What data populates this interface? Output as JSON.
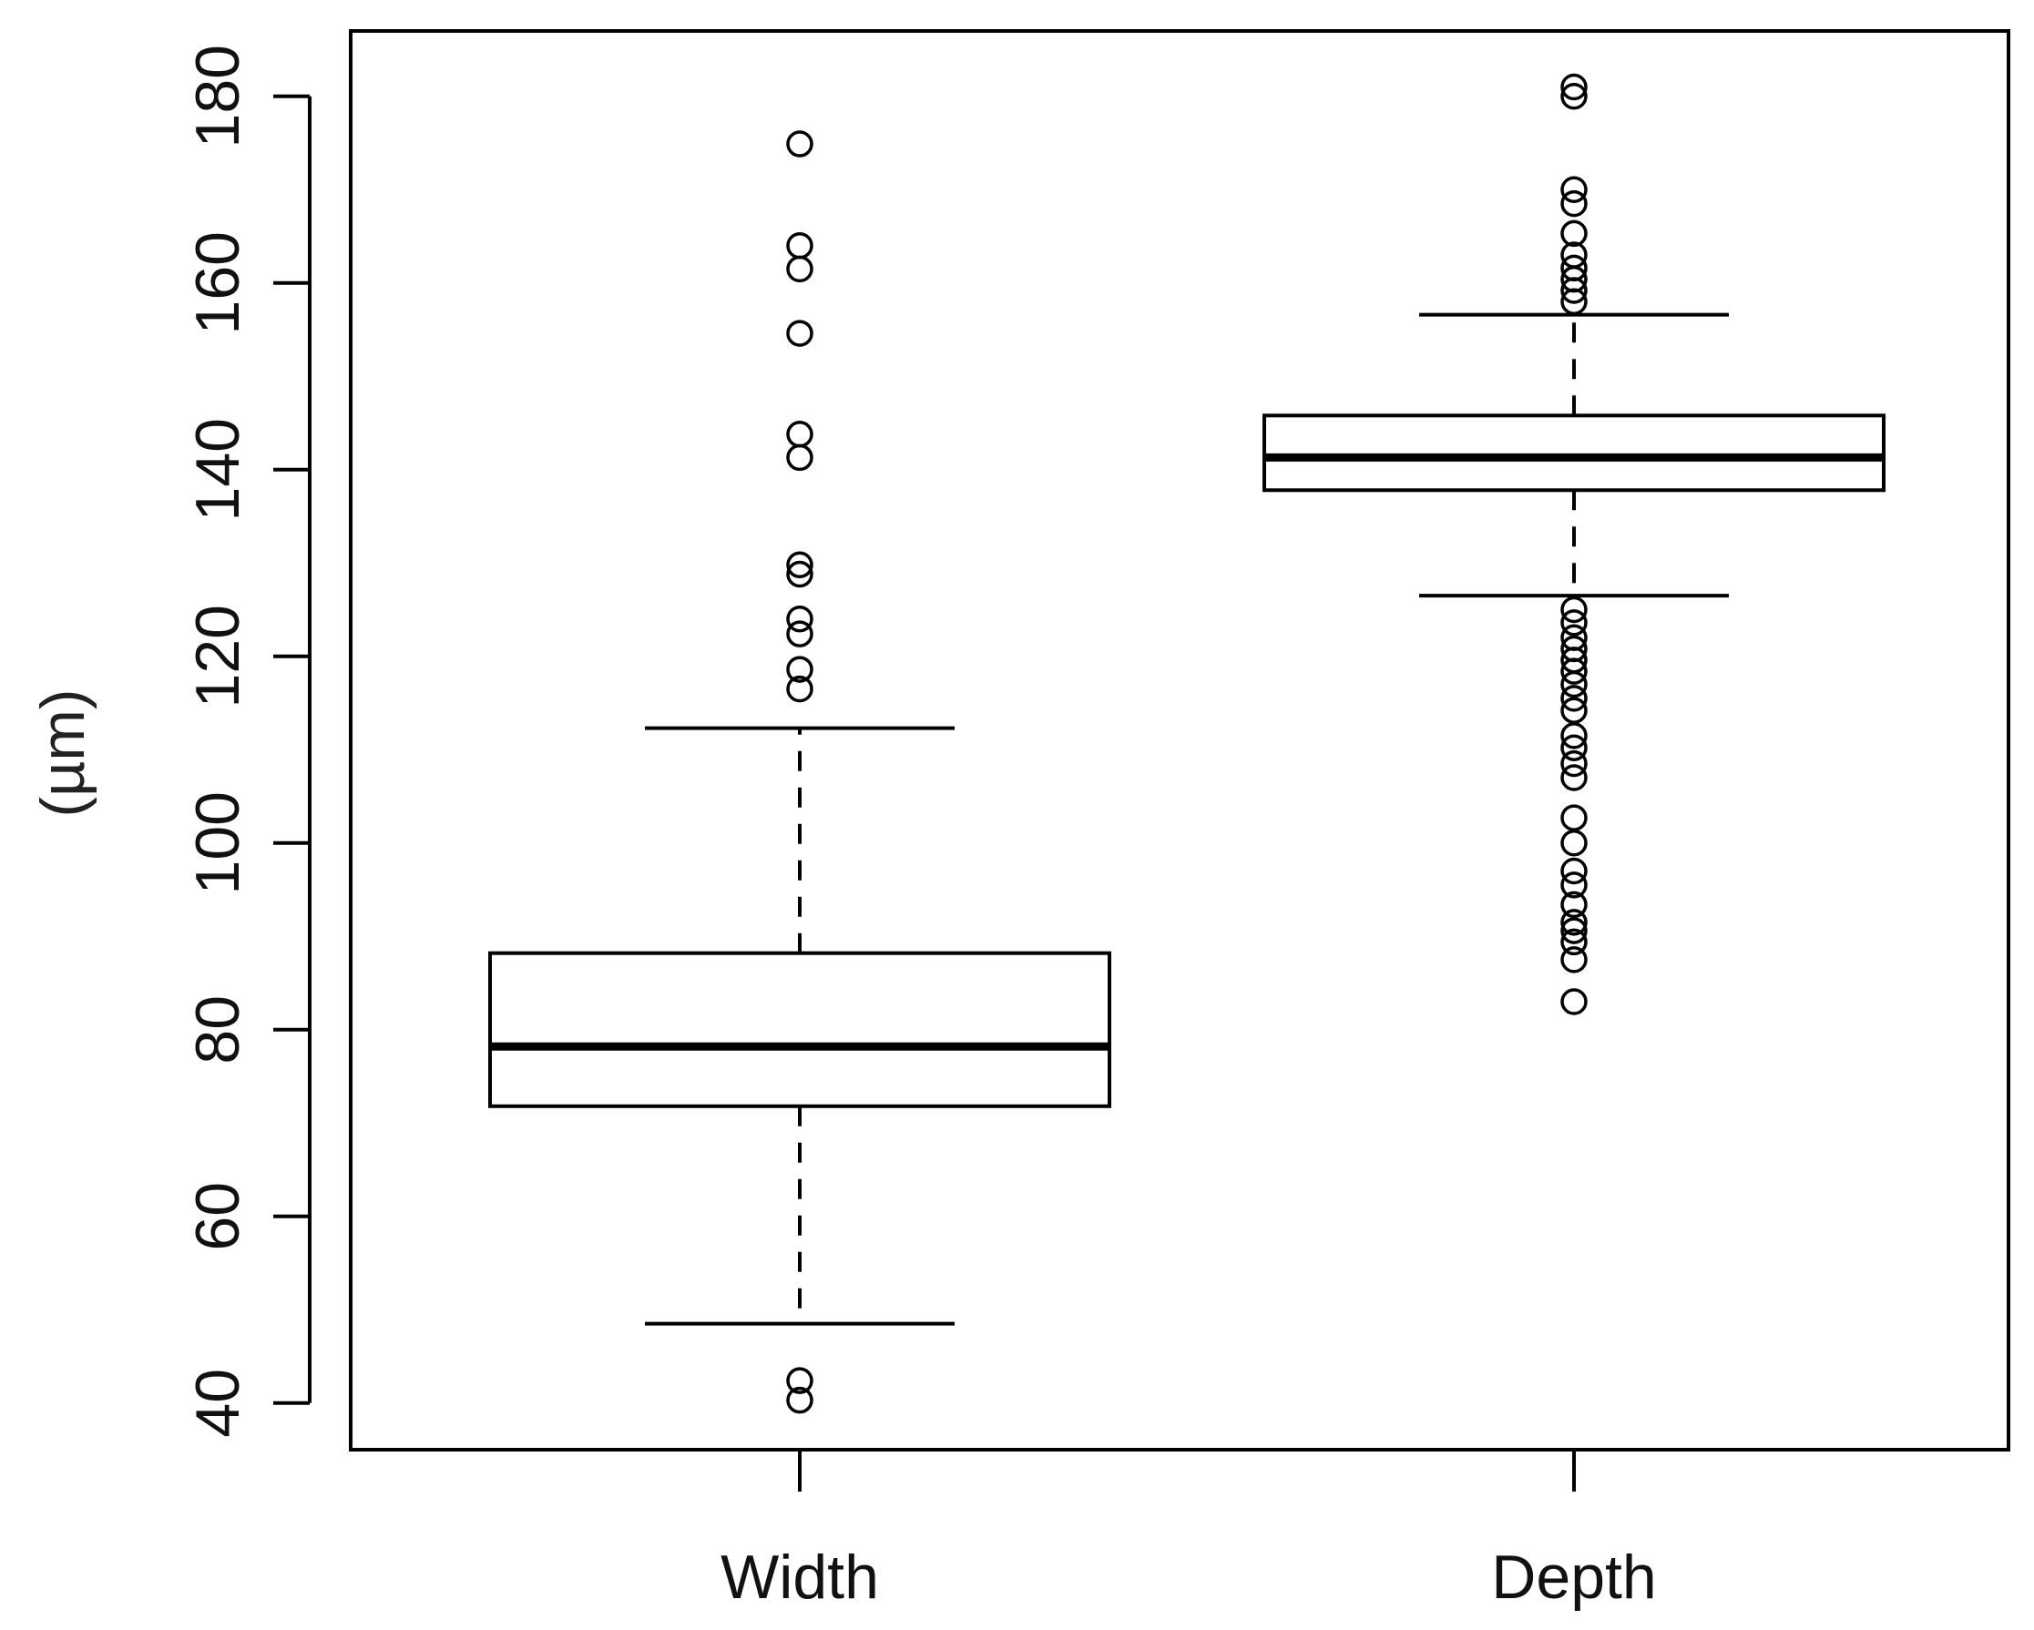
{
  "chart_data": {
    "type": "box",
    "title": "",
    "xlabel": "",
    "ylabel": "(µm)",
    "ylim": [
      35,
      187
    ],
    "yticks": [
      40,
      60,
      80,
      100,
      120,
      140,
      160,
      180
    ],
    "grid": false,
    "legend": "none",
    "colors": {
      "stroke": "#000000",
      "background": "#ffffff"
    },
    "categories": [
      "Width",
      "Depth"
    ],
    "boxes": [
      {
        "name": "Width",
        "whisker_low": 48.5,
        "q1": 71.8,
        "median": 78.2,
        "q3": 88.2,
        "whisker_high": 112.3,
        "outliers": [
          40.3,
          42.4,
          116.5,
          118.6,
          122.4,
          124.0,
          128.8,
          129.8,
          141.3,
          143.8,
          154.6,
          161.5,
          164.0,
          174.9
        ]
      },
      {
        "name": "Depth",
        "whisker_low": 126.5,
        "q1": 137.8,
        "median": 141.3,
        "q3": 145.8,
        "whisker_high": 156.6,
        "outliers": [
          83.0,
          87.5,
          89.4,
          90.6,
          91.5,
          93.4,
          95.5,
          97.0,
          100.0,
          102.7,
          107.0,
          108.5,
          110.2,
          111.5,
          114.2,
          115.5,
          117.0,
          118.4,
          119.6,
          120.8,
          122.0,
          123.6,
          125.0,
          158.0,
          159.2,
          160.4,
          161.6,
          163.0,
          165.3,
          168.5,
          170.0,
          180.0,
          181.0
        ]
      }
    ]
  }
}
